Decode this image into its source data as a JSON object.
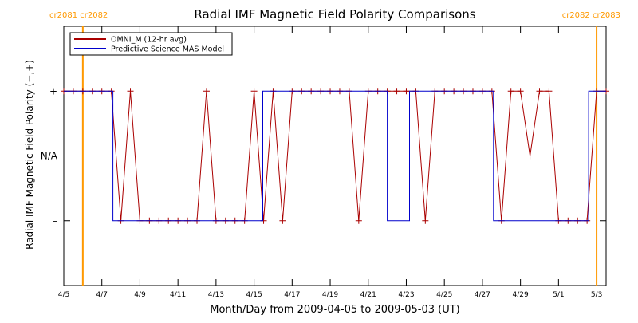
{
  "chart_data": {
    "type": "line",
    "title": "Radial IMF Magnetic Field Polarity Comparisons",
    "xlabel": "Month/Day from 2009-04-05 to 2009-05-03 (UT)",
    "ylabel": "Radial IMF Magnetic Field Polarity (−,+)",
    "x_range": [
      "2009-04-05T00:00",
      "2009-05-03T12:00"
    ],
    "y_categories": [
      {
        "label": "+",
        "value": 1
      },
      {
        "label": "N/A",
        "value": 0
      },
      {
        "label": "–",
        "value": -1
      }
    ],
    "ylim": [
      -2,
      2
    ],
    "x_ticks": [
      "4/5",
      "4/7",
      "4/9",
      "4/11",
      "4/13",
      "4/15",
      "4/17",
      "4/19",
      "4/21",
      "4/23",
      "4/25",
      "4/27",
      "4/29",
      "5/1",
      "5/3"
    ],
    "carrington_markers": [
      {
        "date": "2009-04-06T00:00",
        "label": "cr2081 cr2082",
        "color": "#ff9900"
      },
      {
        "date": "2009-05-03T00:00",
        "label": "cr2082 cr2083",
        "color": "#ff9900"
      }
    ],
    "legend_position": "top-left",
    "series": [
      {
        "name": "OMNI_M (12-hr avg)",
        "color": "#aa0000",
        "marker": "plus",
        "points": [
          [
            "2009-04-05T00:00",
            1
          ],
          [
            "2009-04-05T12:00",
            1
          ],
          [
            "2009-04-06T00:00",
            1
          ],
          [
            "2009-04-06T12:00",
            1
          ],
          [
            "2009-04-07T00:00",
            1
          ],
          [
            "2009-04-07T12:00",
            1
          ],
          [
            "2009-04-08T00:00",
            -1
          ],
          [
            "2009-04-08T12:00",
            1
          ],
          [
            "2009-04-09T00:00",
            -1
          ],
          [
            "2009-04-09T12:00",
            -1
          ],
          [
            "2009-04-10T00:00",
            -1
          ],
          [
            "2009-04-10T12:00",
            -1
          ],
          [
            "2009-04-11T00:00",
            -1
          ],
          [
            "2009-04-11T12:00",
            -1
          ],
          [
            "2009-04-12T00:00",
            -1
          ],
          [
            "2009-04-12T12:00",
            1
          ],
          [
            "2009-04-13T00:00",
            -1
          ],
          [
            "2009-04-13T12:00",
            -1
          ],
          [
            "2009-04-14T00:00",
            -1
          ],
          [
            "2009-04-14T12:00",
            -1
          ],
          [
            "2009-04-15T00:00",
            1
          ],
          [
            "2009-04-15T12:00",
            -1
          ],
          [
            "2009-04-16T00:00",
            1
          ],
          [
            "2009-04-16T12:00",
            -1
          ],
          [
            "2009-04-17T00:00",
            1
          ],
          [
            "2009-04-17T12:00",
            1
          ],
          [
            "2009-04-18T00:00",
            1
          ],
          [
            "2009-04-18T12:00",
            1
          ],
          [
            "2009-04-19T00:00",
            1
          ],
          [
            "2009-04-19T12:00",
            1
          ],
          [
            "2009-04-20T00:00",
            1
          ],
          [
            "2009-04-20T12:00",
            -1
          ],
          [
            "2009-04-21T00:00",
            1
          ],
          [
            "2009-04-21T12:00",
            1
          ],
          [
            "2009-04-22T00:00",
            1
          ],
          [
            "2009-04-22T12:00",
            1
          ],
          [
            "2009-04-23T00:00",
            1
          ],
          [
            "2009-04-23T12:00",
            1
          ],
          [
            "2009-04-24T00:00",
            -1
          ],
          [
            "2009-04-24T12:00",
            1
          ],
          [
            "2009-04-25T00:00",
            1
          ],
          [
            "2009-04-25T12:00",
            1
          ],
          [
            "2009-04-26T00:00",
            1
          ],
          [
            "2009-04-26T12:00",
            1
          ],
          [
            "2009-04-27T00:00",
            1
          ],
          [
            "2009-04-27T12:00",
            1
          ],
          [
            "2009-04-28T00:00",
            -1
          ],
          [
            "2009-04-28T12:00",
            1
          ],
          [
            "2009-04-29T00:00",
            1
          ],
          [
            "2009-04-29T12:00",
            0
          ],
          [
            "2009-04-30T00:00",
            1
          ],
          [
            "2009-04-30T12:00",
            1
          ],
          [
            "2009-05-01T00:00",
            -1
          ],
          [
            "2009-05-01T12:00",
            -1
          ],
          [
            "2009-05-02T00:00",
            -1
          ],
          [
            "2009-05-02T12:00",
            -1
          ],
          [
            "2009-05-03T00:00",
            1
          ],
          [
            "2009-05-03T12:00",
            1
          ]
        ]
      },
      {
        "name": "Predictive Science MAS Model",
        "color": "#0000cc",
        "points": [
          [
            "2009-04-05T00:00",
            1
          ],
          [
            "2009-04-07T14:00",
            1
          ],
          [
            "2009-04-07T14:00",
            -1
          ],
          [
            "2009-04-15T11:00",
            -1
          ],
          [
            "2009-04-15T11:00",
            1
          ],
          [
            "2009-04-22T00:00",
            1
          ],
          [
            "2009-04-22T00:00",
            -1
          ],
          [
            "2009-04-23T04:00",
            -1
          ],
          [
            "2009-04-23T04:00",
            1
          ],
          [
            "2009-04-27T14:00",
            1
          ],
          [
            "2009-04-27T14:00",
            -1
          ],
          [
            "2009-05-02T14:00",
            -1
          ],
          [
            "2009-05-02T14:00",
            1
          ],
          [
            "2009-05-03T12:00",
            1
          ]
        ]
      }
    ]
  }
}
